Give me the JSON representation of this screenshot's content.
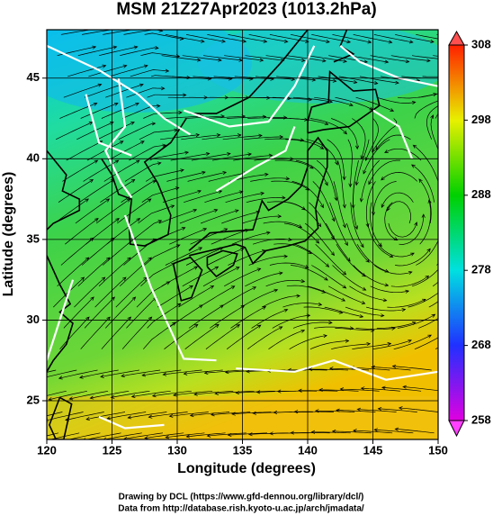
{
  "title": "MSM 21Z27Apr2023 (1013.2hPa)",
  "x_axis": {
    "label": "Longitude (degrees)",
    "range": [
      120,
      150
    ],
    "ticks": [
      120,
      125,
      130,
      135,
      140,
      145,
      150
    ]
  },
  "y_axis": {
    "label": "Latitude  (degrees)",
    "range": [
      22.6,
      48
    ],
    "ticks": [
      25,
      30,
      35,
      40,
      45
    ]
  },
  "colorbar": {
    "range": [
      258,
      308
    ],
    "ticks": [
      258,
      268,
      278,
      288,
      298,
      308
    ]
  },
  "credits": [
    "Drawing by DCL (https://www.gfd-dennou.org/library/dcl/)",
    "Data from http://database.rish.kyoto-u.ac.jp/arch/jmadata/"
  ]
}
